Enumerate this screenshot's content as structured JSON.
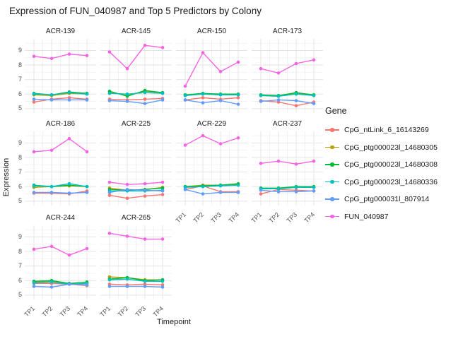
{
  "title": "Expression of FUN_040987 and Top 5 Predictors by Colony",
  "axes": {
    "x_label": "Timepoint",
    "y_label": "Expression",
    "x_ticks": [
      "TP1",
      "TP2",
      "TP3",
      "TP4"
    ],
    "y_ticks": [
      5,
      6,
      7,
      8,
      9
    ]
  },
  "legend": {
    "title": "Gene",
    "entries": [
      {
        "label": "CpG_ntLink_6_16143269",
        "color": "#F8766D"
      },
      {
        "label": "CpG_ptg000023l_14680305",
        "color": "#B79F00"
      },
      {
        "label": "CpG_ptg000023l_14680308",
        "color": "#00BA38"
      },
      {
        "label": "CpG_ptg000023l_14680336",
        "color": "#00BFC4"
      },
      {
        "label": "CpG_ptg000031l_807914",
        "color": "#619CFF"
      },
      {
        "label": "FUN_040987",
        "color": "#F564E3"
      }
    ]
  },
  "style": {
    "grid_major_color": "#E4E4E4",
    "grid_minor_color": "#F1F1F1",
    "panel_background": "#FFFFFF"
  },
  "chart_data": {
    "type": "line",
    "title": "Expression of FUN_040987 and Top 5 Predictors by Colony",
    "xlabel": "Timepoint",
    "ylabel": "Expression",
    "x": [
      "TP1",
      "TP2",
      "TP3",
      "TP4"
    ],
    "ylim": [
      4.7,
      9.8
    ],
    "grid": true,
    "legend_position": "right",
    "facet_columns": 4,
    "facets": [
      {
        "name": "ACR-139",
        "values": {
          "CpG_ntLink_6_16143269": [
            5.45,
            5.65,
            5.75,
            5.65
          ],
          "CpG_ptg000023l_14680305": [
            5.95,
            5.9,
            6.05,
            6.0
          ],
          "CpG_ptg000023l_14680308": [
            6.05,
            5.95,
            6.15,
            6.05
          ],
          "CpG_ptg000023l_14680336": [
            6.0,
            5.95,
            6.1,
            6.0
          ],
          "CpG_ptg000031l_807914": [
            5.65,
            5.6,
            5.6,
            5.6
          ],
          "FUN_040987": [
            8.6,
            8.45,
            8.75,
            8.65
          ]
        }
      },
      {
        "name": "ACR-145",
        "values": {
          "CpG_ntLink_6_16143269": [
            5.65,
            5.6,
            5.65,
            5.7
          ],
          "CpG_ptg000023l_14680305": [
            6.15,
            5.9,
            6.2,
            6.1
          ],
          "CpG_ptg000023l_14680308": [
            6.2,
            5.85,
            6.25,
            6.1
          ],
          "CpG_ptg000023l_14680336": [
            6.05,
            6.0,
            6.1,
            6.05
          ],
          "CpG_ptg000031l_807914": [
            5.55,
            5.5,
            5.35,
            5.6
          ],
          "FUN_040987": [
            8.9,
            7.75,
            9.35,
            9.2
          ]
        }
      },
      {
        "name": "ACR-150",
        "values": {
          "CpG_ntLink_6_16143269": [
            5.6,
            5.75,
            5.65,
            5.75
          ],
          "CpG_ptg000023l_14680305": [
            5.9,
            6.0,
            5.95,
            5.95
          ],
          "CpG_ptg000023l_14680308": [
            5.95,
            6.05,
            6.0,
            6.0
          ],
          "CpG_ptg000023l_14680336": [
            5.9,
            6.0,
            5.95,
            5.95
          ],
          "CpG_ptg000031l_807914": [
            5.6,
            5.4,
            5.55,
            5.3
          ],
          "FUN_040987": [
            6.55,
            8.85,
            7.55,
            8.2
          ]
        }
      },
      {
        "name": "ACR-173",
        "values": {
          "CpG_ntLink_6_16143269": [
            5.55,
            5.45,
            5.2,
            5.45
          ],
          "CpG_ptg000023l_14680305": [
            5.9,
            5.85,
            6.05,
            5.9
          ],
          "CpG_ptg000023l_14680308": [
            5.95,
            5.9,
            6.1,
            5.95
          ],
          "CpG_ptg000023l_14680336": [
            5.9,
            5.85,
            6.0,
            5.9
          ],
          "CpG_ptg000031l_807914": [
            5.5,
            5.6,
            5.55,
            5.35
          ],
          "FUN_040987": [
            7.75,
            7.45,
            8.1,
            8.35
          ]
        }
      },
      {
        "name": "ACR-186",
        "values": {
          "CpG_ntLink_6_16143269": [
            5.55,
            5.55,
            5.5,
            5.7
          ],
          "CpG_ptg000023l_14680305": [
            5.95,
            6.0,
            6.05,
            6.0
          ],
          "CpG_ptg000023l_14680308": [
            6.1,
            6.0,
            6.1,
            6.0
          ],
          "CpG_ptg000023l_14680336": [
            6.05,
            6.0,
            6.2,
            6.0
          ],
          "CpG_ptg000031l_807914": [
            5.6,
            5.6,
            5.55,
            5.6
          ],
          "FUN_040987": [
            8.4,
            8.5,
            9.3,
            8.4
          ]
        }
      },
      {
        "name": "ACR-225",
        "values": {
          "CpG_ntLink_6_16143269": [
            5.4,
            5.2,
            5.35,
            5.45
          ],
          "CpG_ptg000023l_14680305": [
            5.9,
            5.75,
            5.8,
            5.95
          ],
          "CpG_ptg000023l_14680308": [
            5.8,
            5.75,
            5.8,
            5.9
          ],
          "CpG_ptg000023l_14680336": [
            5.7,
            5.7,
            5.7,
            5.75
          ],
          "CpG_ptg000031l_807914": [
            5.6,
            5.8,
            5.75,
            5.7
          ],
          "FUN_040987": [
            6.3,
            6.15,
            6.2,
            6.3
          ]
        }
      },
      {
        "name": "ACR-229",
        "values": {
          "CpG_ntLink_6_16143269": [
            5.8,
            6.05,
            5.65,
            5.65
          ],
          "CpG_ptg000023l_14680305": [
            6.0,
            6.1,
            6.1,
            6.15
          ],
          "CpG_ptg000023l_14680308": [
            6.0,
            6.05,
            6.1,
            6.2
          ],
          "CpG_ptg000023l_14680336": [
            5.95,
            6.0,
            6.05,
            6.1
          ],
          "CpG_ptg000031l_807914": [
            5.8,
            5.5,
            5.6,
            5.6
          ],
          "FUN_040987": [
            8.85,
            9.5,
            8.95,
            9.35
          ]
        }
      },
      {
        "name": "ACR-237",
        "values": {
          "CpG_ntLink_6_16143269": [
            5.5,
            5.8,
            5.75,
            5.7
          ],
          "CpG_ptg000023l_14680305": [
            5.85,
            5.85,
            5.95,
            5.95
          ],
          "CpG_ptg000023l_14680308": [
            5.9,
            5.9,
            6.0,
            6.0
          ],
          "CpG_ptg000023l_14680336": [
            5.85,
            5.85,
            5.95,
            5.95
          ],
          "CpG_ptg000031l_807914": [
            5.75,
            5.65,
            5.65,
            5.7
          ],
          "FUN_040987": [
            7.6,
            7.75,
            7.55,
            7.75
          ]
        }
      },
      {
        "name": "ACR-244",
        "values": {
          "CpG_ntLink_6_16143269": [
            5.8,
            5.8,
            5.75,
            5.65
          ],
          "CpG_ptg000023l_14680305": [
            5.9,
            5.95,
            5.75,
            5.8
          ],
          "CpG_ptg000023l_14680308": [
            5.95,
            6.0,
            5.8,
            5.9
          ],
          "CpG_ptg000023l_14680336": [
            5.85,
            5.9,
            5.75,
            5.8
          ],
          "CpG_ptg000031l_807914": [
            5.6,
            5.55,
            5.75,
            5.7
          ],
          "FUN_040987": [
            8.15,
            8.35,
            7.75,
            8.2
          ]
        }
      },
      {
        "name": "ACR-265",
        "values": {
          "CpG_ntLink_6_16143269": [
            5.75,
            5.7,
            5.75,
            5.7
          ],
          "CpG_ptg000023l_14680305": [
            6.25,
            6.2,
            6.05,
            6.05
          ],
          "CpG_ptg000023l_14680308": [
            6.1,
            6.2,
            6.0,
            6.05
          ],
          "CpG_ptg000023l_14680336": [
            6.05,
            6.1,
            5.95,
            5.95
          ],
          "CpG_ptg000031l_807914": [
            5.6,
            5.6,
            5.6,
            5.55
          ],
          "FUN_040987": [
            9.25,
            9.05,
            8.85,
            8.85
          ]
        }
      }
    ]
  }
}
